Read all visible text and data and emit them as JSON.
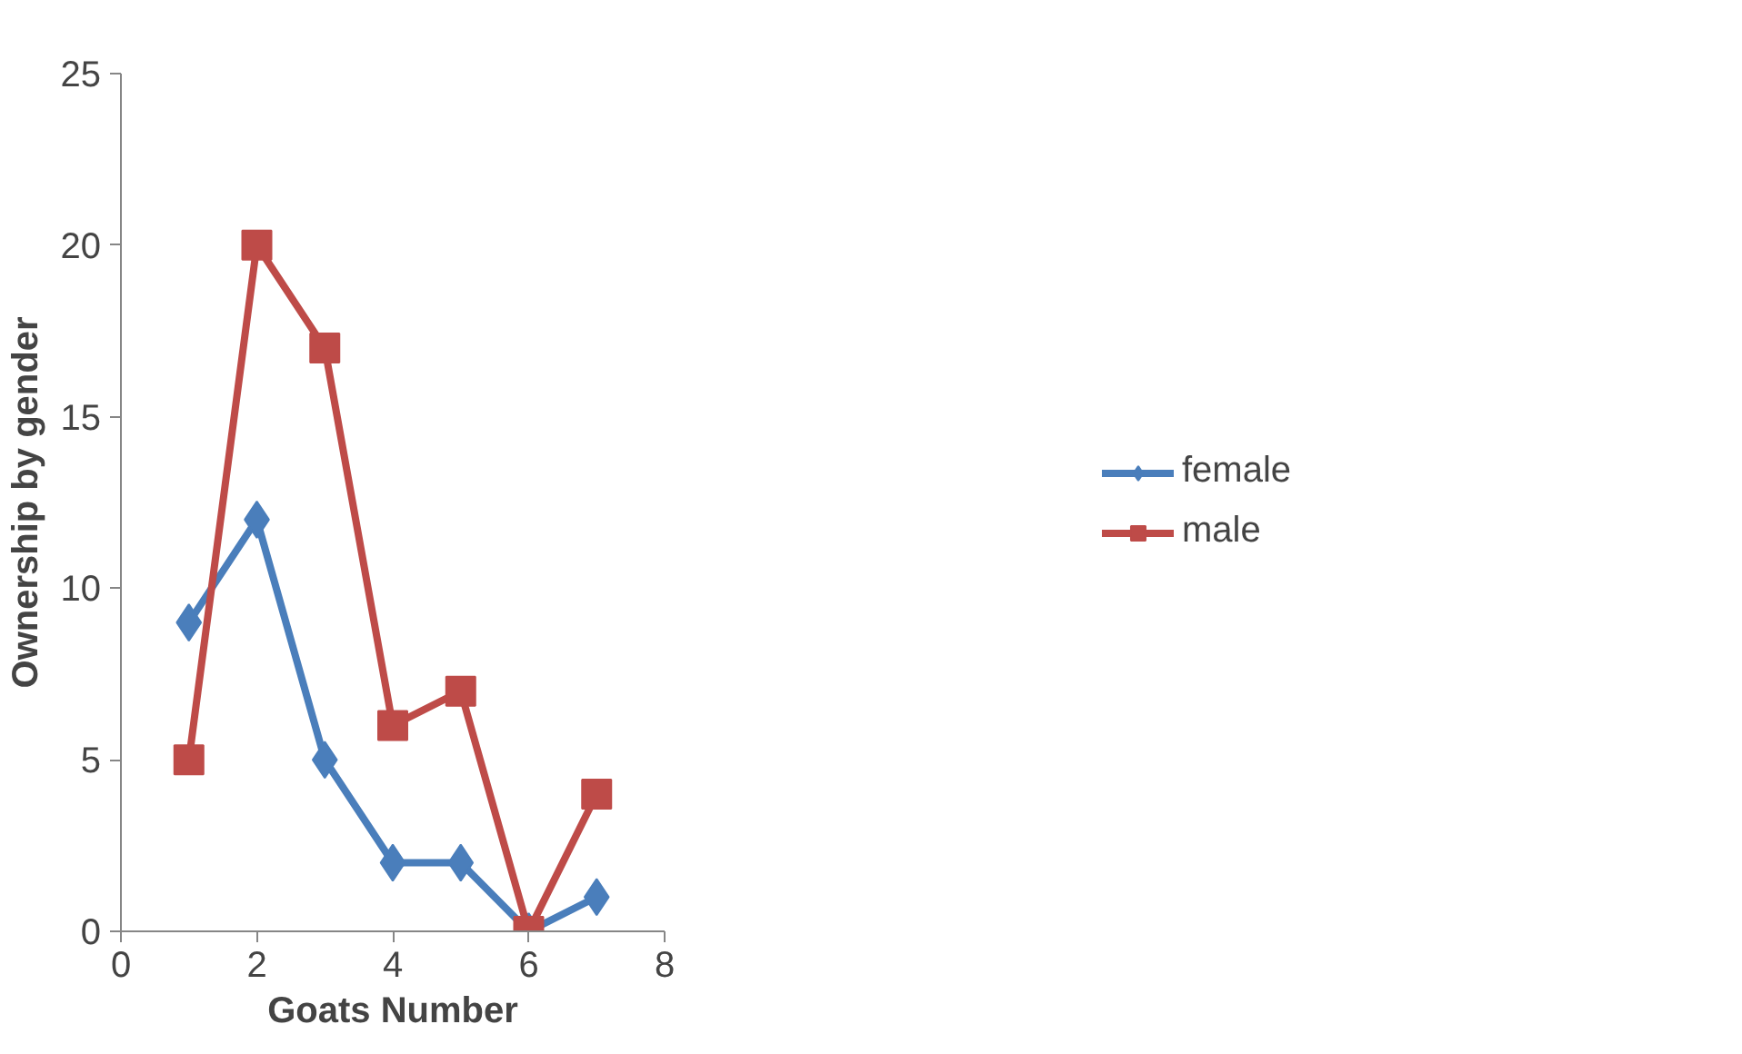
{
  "chart_data": {
    "type": "line",
    "xlabel": "Goats Number",
    "ylabel": "Ownership by gender",
    "x": [
      1,
      2,
      3,
      4,
      5,
      6,
      7
    ],
    "series": [
      {
        "name": "female",
        "color": "#4a7ebb",
        "marker": "diamond",
        "values": [
          9,
          12,
          5,
          2,
          2,
          0,
          1
        ]
      },
      {
        "name": "male",
        "color": "#be4b48",
        "marker": "square",
        "values": [
          5,
          20,
          17,
          6,
          7,
          0,
          4
        ]
      }
    ],
    "xlim": [
      0,
      8
    ],
    "xticks": [
      0,
      2,
      4,
      6,
      8
    ],
    "ylim": [
      0,
      25
    ],
    "yticks": [
      0,
      5,
      10,
      15,
      20,
      25
    ],
    "grid": false,
    "legend": "right",
    "line_style": "solid"
  }
}
